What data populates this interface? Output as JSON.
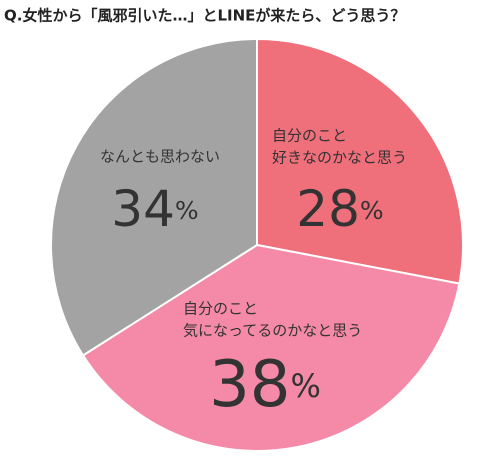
{
  "chart_data": {
    "type": "pie",
    "title": "Q.女性から「風邪引いた…」とLINEが来たら、どう思う？",
    "categories": [
      [
        "自分のこと",
        "好きなのかなと思う"
      ],
      [
        "自分のこと",
        "気になってるのかなと思う"
      ],
      [
        "なんとも思わない"
      ]
    ],
    "values": [
      28,
      38,
      34
    ],
    "value_labels": [
      "28%",
      "38%",
      "34%"
    ],
    "colors": [
      "#ef6f7b",
      "#f48aa8",
      "#a3a3a3"
    ]
  }
}
